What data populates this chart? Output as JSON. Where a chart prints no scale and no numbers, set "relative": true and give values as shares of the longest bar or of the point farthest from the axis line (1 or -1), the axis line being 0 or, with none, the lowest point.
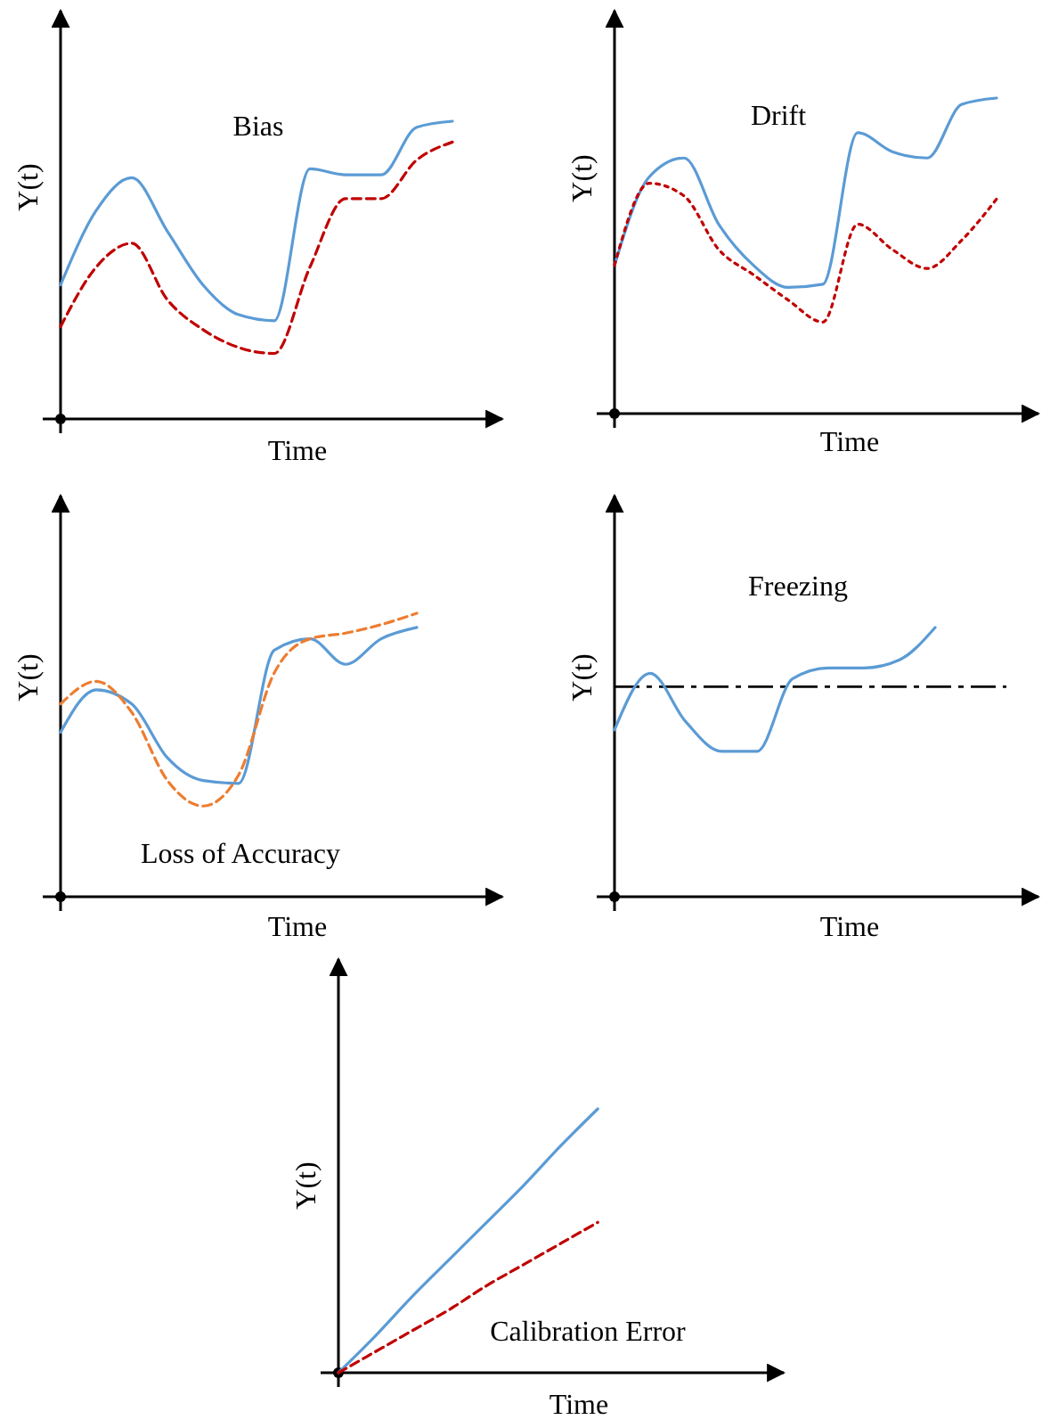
{
  "chart_data": [
    {
      "type": "line",
      "title": "Bias",
      "xlabel": "Time",
      "ylabel": "Y(t)",
      "relative": true,
      "categories": [
        null,
        null,
        null,
        null,
        null,
        null,
        null,
        null,
        null,
        null,
        null,
        null,
        null
      ],
      "series": [
        {
          "color": "#5b9bd5",
          "line_style": "solid",
          "values": [
            0.45,
            0.7,
            0.81,
            0.63,
            0.45,
            0.35,
            0.33,
            0.84,
            0.82,
            0.82,
            0.98,
            1.0,
            null
          ]
        },
        {
          "color": "#c00000",
          "line_style": "dashed",
          "values": [
            0.31,
            0.51,
            0.59,
            0.4,
            0.3,
            0.24,
            0.22,
            0.51,
            0.74,
            0.74,
            0.87,
            0.93,
            null
          ]
        }
      ]
    },
    {
      "type": "line",
      "title": "Drift",
      "xlabel": "Time",
      "ylabel": "Y(t)",
      "relative": true,
      "categories": [
        null,
        null,
        null,
        null,
        null,
        null,
        null,
        null,
        null,
        null,
        null,
        null,
        null
      ],
      "series": [
        {
          "color": "#5b9bd5",
          "line_style": "solid",
          "values": [
            0.47,
            0.75,
            0.81,
            0.6,
            0.47,
            0.4,
            0.41,
            0.89,
            0.83,
            0.81,
            0.98,
            1.0,
            null
          ]
        },
        {
          "color": "#c00000",
          "line_style": "dotted",
          "values": [
            0.47,
            0.73,
            0.69,
            0.52,
            0.44,
            0.36,
            0.29,
            0.6,
            0.52,
            0.46,
            0.55,
            0.68,
            null
          ]
        }
      ]
    },
    {
      "type": "line",
      "title": "Loss of Accuracy",
      "xlabel": "Time",
      "ylabel": "Y(t)",
      "relative": true,
      "categories": [
        null,
        null,
        null,
        null,
        null,
        null,
        null,
        null,
        null,
        null,
        null,
        null,
        null
      ],
      "series": [
        {
          "color": "#5b9bd5",
          "line_style": "solid",
          "values": [
            0.58,
            0.73,
            0.68,
            0.49,
            0.41,
            0.4,
            0.87,
            0.91,
            0.82,
            0.91,
            0.95,
            null,
            null
          ]
        },
        {
          "color": "#ed7d31",
          "line_style": "dashed",
          "values": [
            0.68,
            0.76,
            0.65,
            0.41,
            0.32,
            0.43,
            0.79,
            0.91,
            0.93,
            0.96,
            1.0,
            null,
            null
          ]
        }
      ]
    },
    {
      "type": "line",
      "title": "Freezing",
      "xlabel": "Time",
      "ylabel": "Y(t)",
      "relative": true,
      "categories": [
        null,
        null,
        null,
        null,
        null,
        null,
        null,
        null,
        null,
        null,
        null,
        null,
        null
      ],
      "series": [
        {
          "color": "#5b9bd5",
          "line_style": "solid",
          "values": [
            0.62,
            0.83,
            0.65,
            0.54,
            0.54,
            0.81,
            0.85,
            0.85,
            0.88,
            1.0,
            null,
            null,
            null
          ]
        }
      ],
      "ref_lines": [
        {
          "axis": "y",
          "value": 0.78,
          "color": "#000000",
          "line_style": "dashed"
        }
      ]
    },
    {
      "type": "line",
      "title": "Calibration Error",
      "xlabel": "Time",
      "ylabel": "Y(t)",
      "relative": true,
      "categories": [
        null,
        null,
        null,
        null,
        null,
        null,
        null,
        null,
        null,
        null,
        null,
        null,
        null
      ],
      "series": [
        {
          "color": "#5b9bd5",
          "line_style": "solid",
          "values": [
            0,
            0.14,
            0.29,
            0.43,
            0.57,
            0.71,
            0.86,
            1.0,
            null,
            null,
            null,
            null,
            null
          ]
        },
        {
          "color": "#c00000",
          "line_style": "dashed",
          "values": [
            0,
            0.08,
            0.16,
            0.24,
            0.33,
            0.41,
            0.49,
            0.57,
            null,
            null,
            null,
            null,
            null
          ]
        }
      ]
    }
  ]
}
